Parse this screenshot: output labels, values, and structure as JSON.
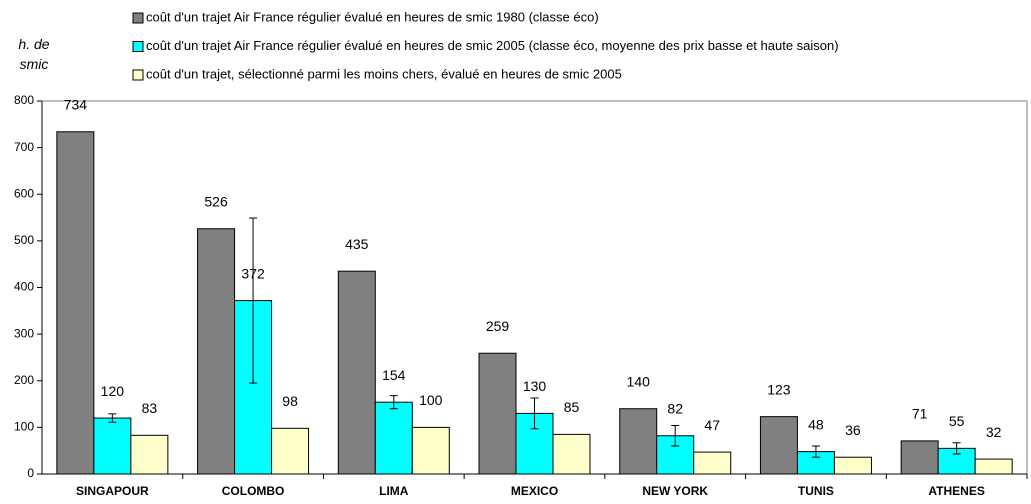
{
  "chart_data": {
    "type": "bar",
    "y_label": "h. de smic",
    "categories": [
      "SINGAPOUR",
      "COLOMBO",
      "LIMA",
      "MEXICO",
      "NEW YORK",
      "TUNIS",
      "ATHENES"
    ],
    "series": [
      {
        "name": "coût d'un trajet Air France régulier évalué en heures de smic 1980 (classe éco)",
        "color": "#808080",
        "values": [
          734,
          526,
          435,
          259,
          140,
          123,
          71
        ]
      },
      {
        "name": "coût d'un trajet Air France régulier évalué en heures de smic 2005 (classe éco, moyenne des prix basse et haute saison)",
        "color": "#00ffff",
        "values": [
          120,
          372,
          154,
          130,
          82,
          48,
          55
        ],
        "errors": [
          9,
          177,
          14,
          33,
          22,
          12,
          12
        ]
      },
      {
        "name": "coût d'un trajet, sélectionné parmi les moins chers, évalué en heures de smic 2005",
        "color": "#ffffcc",
        "values": [
          83,
          98,
          100,
          85,
          47,
          36,
          32
        ]
      }
    ],
    "ylim": [
      0,
      800
    ],
    "yticks": [
      0,
      100,
      200,
      300,
      400,
      500,
      600,
      700,
      800
    ],
    "grid": false
  }
}
